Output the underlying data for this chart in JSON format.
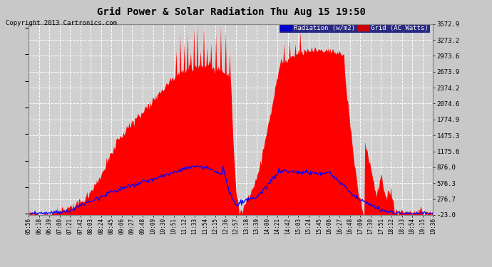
{
  "title": "Grid Power & Solar Radiation Thu Aug 15 19:50",
  "copyright": "Copyright 2013 Cartronics.com",
  "bg_color": "#c8c8c8",
  "plot_bg_color": "#d0d0d0",
  "ylabel_right_values": [
    3572.9,
    3273.2,
    2973.6,
    2673.9,
    2374.2,
    2074.6,
    1774.9,
    1475.3,
    1175.6,
    876.0,
    576.3,
    276.7,
    -23.0
  ],
  "x_labels": [
    "05:56",
    "06:18",
    "06:39",
    "07:00",
    "07:21",
    "07:42",
    "08:03",
    "08:24",
    "08:45",
    "09:06",
    "09:27",
    "09:48",
    "10:09",
    "10:30",
    "10:51",
    "11:12",
    "11:33",
    "11:54",
    "12:15",
    "12:36",
    "12:57",
    "13:18",
    "13:39",
    "14:00",
    "14:21",
    "14:42",
    "15:03",
    "15:24",
    "15:45",
    "16:06",
    "16:27",
    "16:48",
    "17:09",
    "17:30",
    "17:51",
    "18:12",
    "18:33",
    "18:54",
    "19:15",
    "19:36"
  ],
  "legend_radiation_label": "Radiation (w/m2)",
  "legend_grid_label": "Grid (AC Watts)",
  "legend_radiation_bg": "#0000cc",
  "legend_grid_bg": "#cc0000",
  "grid_color": "#ffffff",
  "red_fill_color": "#ff0000",
  "blue_line_color": "#0000ff",
  "ymin": -23.0,
  "ymax": 3572.9
}
